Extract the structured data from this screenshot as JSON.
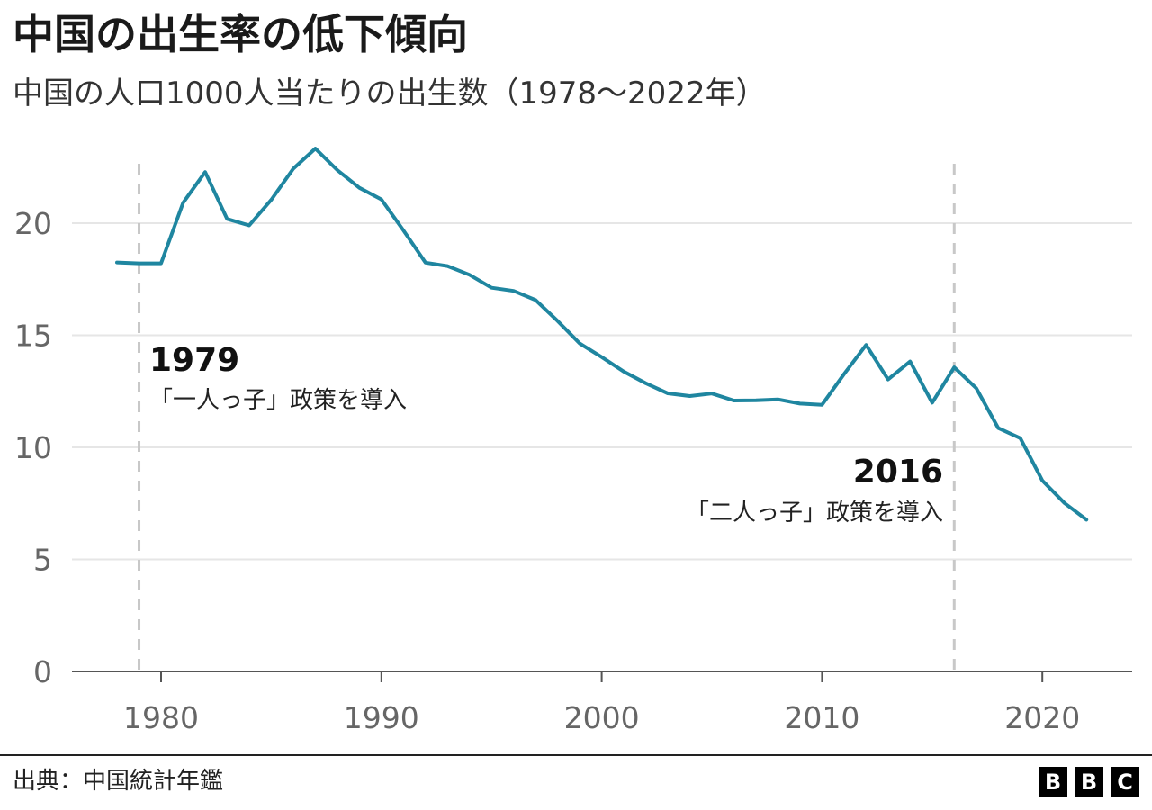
{
  "title": "中国の出生率の低下傾向",
  "subtitle": "中国の人口1000人当たりの出生数（1978～2022年）",
  "source": "出典：中国統計年鑑",
  "logo": [
    "B",
    "B",
    "C"
  ],
  "colors": {
    "line": "#1f86a0",
    "grid": "#e6e6e6",
    "axis": "#555555",
    "dashed": "#c8c8c8"
  },
  "chart_data": {
    "type": "line",
    "title": "中国の出生率の低下傾向",
    "subtitle": "中国の人口1000人当たりの出生数（1978～2022年）",
    "x": [
      1978,
      1979,
      1980,
      1981,
      1982,
      1983,
      1984,
      1985,
      1986,
      1987,
      1988,
      1989,
      1990,
      1991,
      1992,
      1993,
      1994,
      1995,
      1996,
      1997,
      1998,
      1999,
      2000,
      2001,
      2002,
      2003,
      2004,
      2005,
      2006,
      2007,
      2008,
      2009,
      2010,
      2011,
      2012,
      2013,
      2014,
      2015,
      2016,
      2017,
      2018,
      2019,
      2020,
      2021,
      2022
    ],
    "series": [
      {
        "values": [
          18.25,
          18.21,
          18.21,
          20.91,
          22.28,
          20.19,
          19.9,
          21.04,
          22.43,
          23.33,
          22.37,
          21.58,
          21.06,
          19.68,
          18.24,
          18.09,
          17.7,
          17.12,
          16.98,
          16.57,
          15.64,
          14.64,
          14.03,
          13.38,
          12.86,
          12.41,
          12.29,
          12.4,
          12.09,
          12.1,
          12.14,
          11.95,
          11.9,
          13.27,
          14.57,
          13.03,
          13.83,
          11.99,
          13.57,
          12.64,
          10.86,
          10.41,
          8.52,
          7.52,
          6.77
        ]
      }
    ],
    "xlabel": "",
    "ylabel": "",
    "xlim": [
      1977,
      2024
    ],
    "ylim": [
      0,
      23.5
    ],
    "xticks": [
      1980,
      1990,
      2000,
      2010,
      2020
    ],
    "yticks": [
      0,
      5,
      10,
      15,
      20
    ],
    "grid": true,
    "annotations": [
      {
        "x": 1979,
        "year": "1979",
        "text": "「一人っ子」政策を導入"
      },
      {
        "x": 2016,
        "year": "2016",
        "text": "「二人っ子」政策を導入"
      }
    ]
  }
}
